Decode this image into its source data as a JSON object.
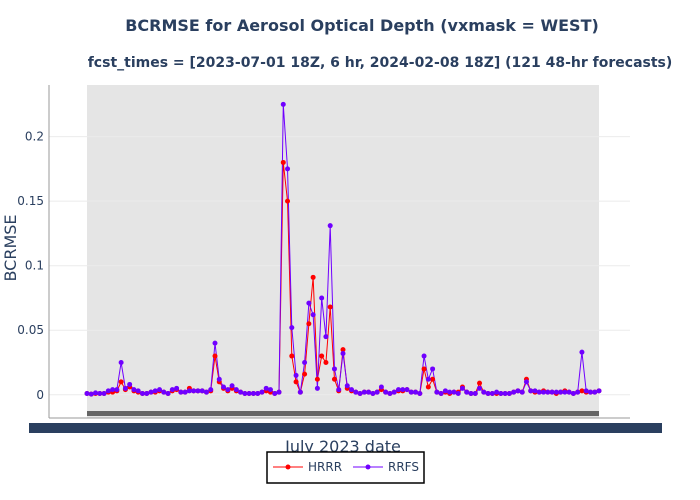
{
  "chart_data": {
    "type": "line",
    "title": "BCRMSE for Aerosol Optical Depth (vxmask = WEST)",
    "subtitle": "fcst_times = [2023-07-01 18Z, 6 hr, 2024-02-08 18Z] (121 48-hr forecasts)",
    "xlabel": "July 2023 date",
    "ylabel": "BCRMSE",
    "ylim": [
      -0.018,
      0.24
    ],
    "xlim": [
      0,
      120
    ],
    "yticks": [
      {
        "value": 0,
        "label": "0"
      },
      {
        "value": 0.05,
        "label": "0.05"
      },
      {
        "value": 0.1,
        "label": "0.1"
      },
      {
        "value": 0.15,
        "label": "0.15"
      },
      {
        "value": 0.2,
        "label": "0.2"
      }
    ],
    "grid": true,
    "legend_position": "bottom-center",
    "x": [
      0,
      1,
      2,
      3,
      4,
      5,
      6,
      7,
      8,
      9,
      10,
      11,
      12,
      13,
      14,
      15,
      16,
      17,
      18,
      19,
      20,
      21,
      22,
      23,
      24,
      25,
      26,
      27,
      28,
      29,
      30,
      31,
      32,
      33,
      34,
      35,
      36,
      37,
      38,
      39,
      40,
      41,
      42,
      43,
      44,
      45,
      46,
      47,
      48,
      49,
      50,
      51,
      52,
      53,
      54,
      55,
      56,
      57,
      58,
      59,
      60,
      61,
      62,
      63,
      64,
      65,
      66,
      67,
      68,
      69,
      70,
      71,
      72,
      73,
      74,
      75,
      76,
      77,
      78,
      79,
      80,
      81,
      82,
      83,
      84,
      85,
      86,
      87,
      88,
      89,
      90,
      91,
      92,
      93,
      94,
      95,
      96,
      97,
      98,
      99,
      100,
      101,
      102,
      103,
      104,
      105,
      106,
      107,
      108,
      109,
      110,
      111,
      112,
      113,
      114,
      115,
      116,
      117,
      118,
      119,
      120
    ],
    "series": [
      {
        "name": "HRRR",
        "color": "#ff0000",
        "values": [
          0.001,
          0.0005,
          0.001,
          0.001,
          0.001,
          0.002,
          0.002,
          0.003,
          0.01,
          0.004,
          0.006,
          0.003,
          0.002,
          0.001,
          0.001,
          0.002,
          0.002,
          0.003,
          0.002,
          0.001,
          0.003,
          0.004,
          0.002,
          0.002,
          0.005,
          0.003,
          0.003,
          0.003,
          0.002,
          0.003,
          0.03,
          0.01,
          0.005,
          0.003,
          0.005,
          0.003,
          0.002,
          0.001,
          0.001,
          0.001,
          0.001,
          0.002,
          0.003,
          0.002,
          0.001,
          0.002,
          0.18,
          0.15,
          0.03,
          0.01,
          0.002,
          0.016,
          0.055,
          0.091,
          0.012,
          0.03,
          0.025,
          0.068,
          0.012,
          0.003,
          0.035,
          0.005,
          0.003,
          0.002,
          0.001,
          0.002,
          0.002,
          0.001,
          0.002,
          0.004,
          0.002,
          0.001,
          0.002,
          0.003,
          0.003,
          0.004,
          0.002,
          0.002,
          0.001,
          0.02,
          0.006,
          0.012,
          0.002,
          0.001,
          0.002,
          0.001,
          0.002,
          0.002,
          0.006,
          0.002,
          0.001,
          0.001,
          0.009,
          0.002,
          0.001,
          0.001,
          0.001,
          0.001,
          0.001,
          0.001,
          0.002,
          0.003,
          0.002,
          0.012,
          0.003,
          0.002,
          0.002,
          0.003,
          0.002,
          0.002,
          0.001,
          0.002,
          0.003,
          0.002,
          0.001,
          0.002,
          0.003,
          0.002,
          0.002,
          0.002,
          0.003
        ]
      },
      {
        "name": "RRFS",
        "color": "#7000ff",
        "values": [
          0.001,
          0.0005,
          0.0015,
          0.001,
          0.001,
          0.003,
          0.004,
          0.004,
          0.025,
          0.005,
          0.008,
          0.004,
          0.003,
          0.001,
          0.001,
          0.002,
          0.003,
          0.004,
          0.002,
          0.001,
          0.004,
          0.005,
          0.002,
          0.002,
          0.003,
          0.003,
          0.003,
          0.003,
          0.002,
          0.004,
          0.04,
          0.012,
          0.006,
          0.004,
          0.007,
          0.004,
          0.002,
          0.001,
          0.001,
          0.001,
          0.001,
          0.002,
          0.005,
          0.004,
          0.001,
          0.002,
          0.225,
          0.175,
          0.052,
          0.015,
          0.002,
          0.025,
          0.071,
          0.062,
          0.005,
          0.075,
          0.045,
          0.131,
          0.02,
          0.004,
          0.032,
          0.007,
          0.004,
          0.002,
          0.001,
          0.002,
          0.002,
          0.001,
          0.002,
          0.006,
          0.002,
          0.001,
          0.002,
          0.004,
          0.004,
          0.004,
          0.002,
          0.002,
          0.001,
          0.03,
          0.012,
          0.02,
          0.002,
          0.001,
          0.003,
          0.002,
          0.002,
          0.001,
          0.005,
          0.002,
          0.001,
          0.001,
          0.005,
          0.002,
          0.001,
          0.001,
          0.002,
          0.001,
          0.001,
          0.001,
          0.002,
          0.003,
          0.002,
          0.01,
          0.003,
          0.003,
          0.002,
          0.002,
          0.002,
          0.002,
          0.002,
          0.002,
          0.002,
          0.002,
          0.001,
          0.002,
          0.033,
          0.003,
          0.002,
          0.002,
          0.003
        ]
      }
    ]
  }
}
